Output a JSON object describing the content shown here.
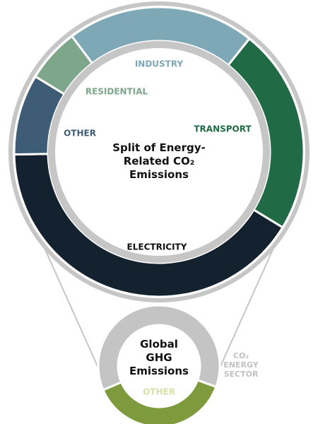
{
  "chart_data": [
    {
      "type": "donut",
      "title": "Split of Energy-Related CO₂ Emissions",
      "categories": [
        "INDUSTRY",
        "TRANSPORT",
        "ELECTRICITY",
        "OTHER",
        "RESIDENTIAL"
      ],
      "values": [
        21,
        23,
        41,
        9,
        6
      ],
      "colors": [
        "#7ea8b6",
        "#206b45",
        "#14222f",
        "#3e5c76",
        "#7ea68b"
      ]
    },
    {
      "type": "donut",
      "title": "Global GHG Emissions",
      "categories": [
        "OTHER",
        "CO₂ ENERGY SECTOR"
      ],
      "values": [
        38,
        62
      ],
      "colors": [
        "#7d9a3c",
        "#c4c4c4"
      ]
    }
  ]
}
